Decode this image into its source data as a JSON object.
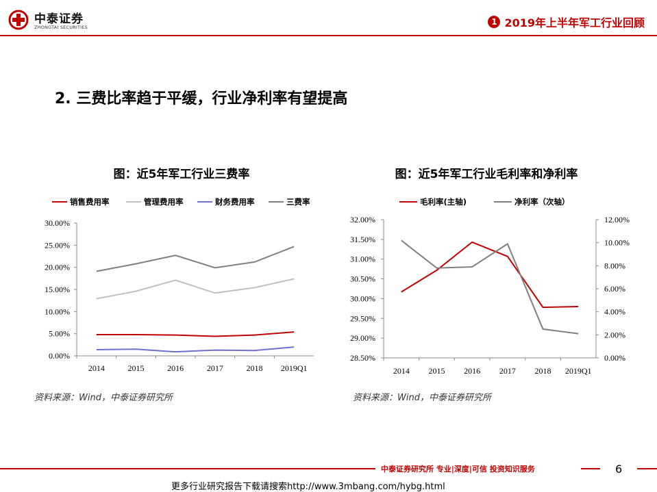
{
  "header": {
    "logo_cn": "中泰证券",
    "logo_en": "ZHONGTAI SECURITIES",
    "section_number": "1",
    "section_title": "2019年上半年军工行业回顾"
  },
  "page_heading": "2. 三费比率趋于平缓，行业净利率有望提高",
  "chart_data": [
    {
      "type": "line",
      "title": "图：近5年军工行业三费率",
      "categories": [
        "2014",
        "2015",
        "2016",
        "2017",
        "2018",
        "2019Q1"
      ],
      "y_ticks": [
        "0.00%",
        "5.00%",
        "10.00%",
        "15.00%",
        "20.00%",
        "25.00%",
        "30.00%"
      ],
      "ylim": [
        0,
        30
      ],
      "legend_position": "top",
      "grid": false,
      "series": [
        {
          "name": "销售费用率",
          "color": "#c00000",
          "values": [
            4.8,
            4.8,
            4.7,
            4.4,
            4.7,
            5.4
          ]
        },
        {
          "name": "管理费用率",
          "color": "#bfbfbf",
          "values": [
            12.9,
            14.6,
            17.1,
            14.2,
            15.4,
            17.4
          ]
        },
        {
          "name": "财务费用率",
          "color": "#6f6fd0",
          "values": [
            1.4,
            1.5,
            0.9,
            1.3,
            1.2,
            2.0
          ]
        },
        {
          "name": "三费率",
          "color": "#7f7f7f",
          "values": [
            19.1,
            20.8,
            22.7,
            19.9,
            21.2,
            24.7
          ]
        }
      ],
      "source": "资料来源：Wind，中泰证券研究所"
    },
    {
      "type": "line",
      "title": "图：近5年军工行业毛利率和净利率",
      "categories": [
        "2014",
        "2015",
        "2016",
        "2017",
        "2018",
        "2019Q1"
      ],
      "y_ticks_left": [
        "28.50%",
        "29.00%",
        "29.50%",
        "30.00%",
        "30.50%",
        "31.00%",
        "31.50%",
        "32.00%"
      ],
      "y_ticks_right": [
        "0.00%",
        "2.00%",
        "4.00%",
        "6.00%",
        "8.00%",
        "10.00%",
        "12.00%"
      ],
      "ylim_left": [
        28.5,
        32.0
      ],
      "ylim_right": [
        0,
        12
      ],
      "legend_position": "top",
      "grid": false,
      "series": [
        {
          "name": "毛利率(主轴)",
          "color": "#c00000",
          "axis": "left",
          "values": [
            30.17,
            30.72,
            31.43,
            31.07,
            29.78,
            29.8
          ]
        },
        {
          "name": "净利率（次轴）",
          "color": "#7f7f7f",
          "axis": "right",
          "values": [
            10.2,
            7.8,
            7.9,
            9.9,
            2.5,
            2.1
          ]
        }
      ],
      "source": "资料来源：Wind，中泰证券研究所"
    }
  ],
  "footer": {
    "brand": "中泰证券研究所 专业|深度|可信 投资知识服务",
    "page_number": "6",
    "download_note": "更多行业研究报告下载请搜索http://www.3mbang.com/hybg.html"
  }
}
